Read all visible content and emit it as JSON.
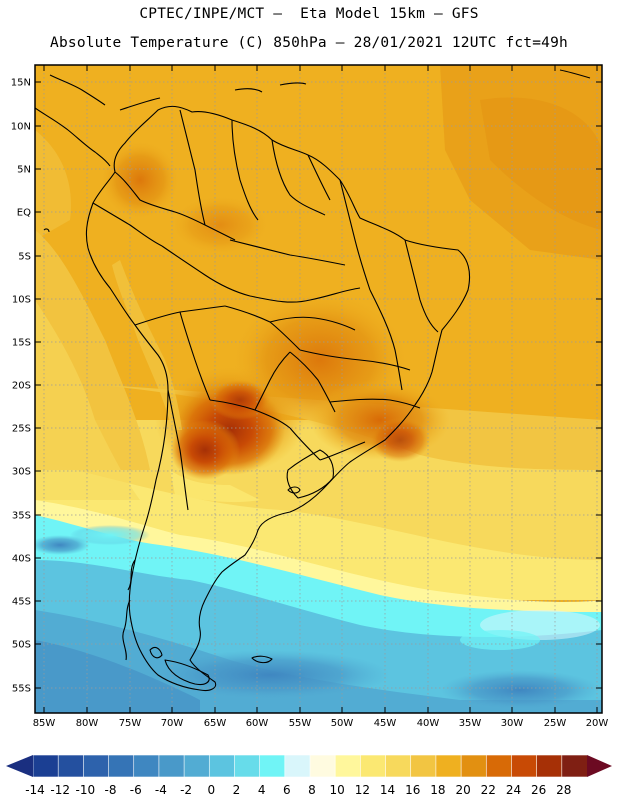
{
  "title_line1": "CPTEC/INPE/MCT –  Eta Model 15km – GFS",
  "title_line2": "Absolute Temperature (C) 850hPa – 28/01/2021 12UTC fct=49h",
  "lat_labels": [
    "15N",
    "10N",
    "5N",
    "EQ",
    "5S",
    "10S",
    "15S",
    "20S",
    "25S",
    "30S",
    "35S",
    "40S",
    "45S",
    "50S",
    "55S"
  ],
  "lon_labels": [
    "85W",
    "80W",
    "75W",
    "70W",
    "65W",
    "60W",
    "55W",
    "50W",
    "45W",
    "40W",
    "35W",
    "30W",
    "25W",
    "20W"
  ],
  "colorbar": {
    "ticks": [
      "-14",
      "-12",
      "-10",
      "-8",
      "-6",
      "-4",
      "-2",
      "0",
      "2",
      "4",
      "6",
      "8",
      "10",
      "12",
      "14",
      "16",
      "18",
      "20",
      "22",
      "24",
      "26",
      "28"
    ],
    "colors": [
      "#1b3f93",
      "#24509f",
      "#2d62ac",
      "#3574b6",
      "#3f87c1",
      "#4999c9",
      "#52acd3",
      "#5cc4e0",
      "#67dcea",
      "#70f4f6",
      "#d9f6fb",
      "#fffbe0",
      "#fff79c",
      "#fbe872",
      "#f7d95c",
      "#f2c542",
      "#efb020",
      "#e29011",
      "#d86a06",
      "#c84a05",
      "#a63006",
      "#7f1f13"
    ],
    "arrow_low": "#1a2f80",
    "arrow_high": "#6c0a22"
  }
}
